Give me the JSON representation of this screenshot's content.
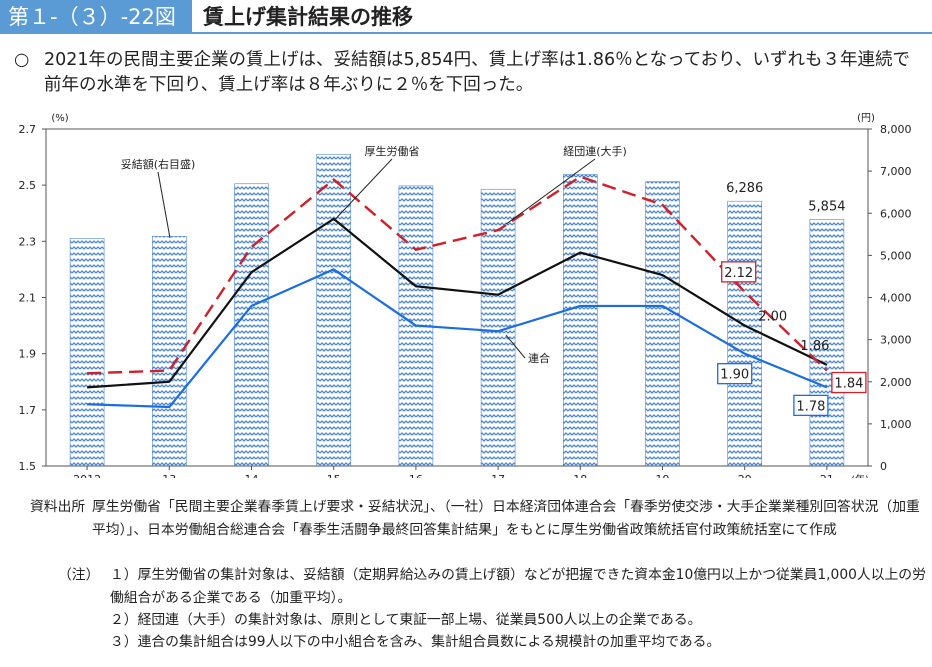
{
  "header": {
    "figure_id": "第１-（３）-22図",
    "title": "賃上げ集計結果の推移"
  },
  "lead": {
    "mark": "○",
    "text": "2021年の民間主要企業の賃上げは、妥結額は5,854円、賃上げ率は1.86％となっており、いずれも３年連続で前年の水準を下回り、賃上げ率は８年ぶりに２％を下回った。"
  },
  "chart_data": {
    "type": "bar+line",
    "categories": [
      "2012",
      "13",
      "14",
      "15",
      "16",
      "17",
      "18",
      "19",
      "20",
      "21"
    ],
    "x_unit": "(年)",
    "y_left": {
      "unit": "(%)",
      "ylim": [
        1.5,
        2.7
      ],
      "ticks": [
        "1.5",
        "1.7",
        "1.9",
        "2.1",
        "2.3",
        "2.5",
        "2.7"
      ]
    },
    "y_right": {
      "unit": "(円)",
      "ylim": [
        0,
        8000
      ],
      "ticks": [
        "0",
        "1,000",
        "2,000",
        "3,000",
        "4,000",
        "5,000",
        "6,000",
        "7,000",
        "8,000"
      ]
    },
    "bars": {
      "name": "妥結額(右目盛)",
      "axis": "right",
      "color": "#5b8fd6",
      "values": [
        5400,
        5450,
        6700,
        7400,
        6650,
        6570,
        6920,
        6750,
        6286,
        5854
      ],
      "labels": {
        "20": "6,286",
        "21": "5,854"
      }
    },
    "series": [
      {
        "name": "厚生労働省",
        "axis": "left",
        "style": "solid",
        "color": "#111111",
        "values": [
          1.78,
          1.8,
          2.19,
          2.38,
          2.14,
          2.11,
          2.26,
          2.18,
          2.0,
          1.86
        ]
      },
      {
        "name": "経団連(大手)",
        "axis": "left",
        "style": "dashed",
        "color": "#d0202a",
        "values": [
          1.83,
          1.84,
          2.28,
          2.52,
          2.27,
          2.34,
          2.53,
          2.43,
          2.12,
          1.84
        ]
      },
      {
        "name": "連合",
        "axis": "left",
        "style": "solid",
        "color": "#1a6ee0",
        "values": [
          1.72,
          1.71,
          2.07,
          2.2,
          2.0,
          1.98,
          2.07,
          2.07,
          1.9,
          1.78
        ]
      }
    ],
    "annotations": [
      {
        "text": "2.12",
        "series": "経団連(大手)",
        "index": 8,
        "boxed": true,
        "color": "#d0202a"
      },
      {
        "text": "2.00",
        "series": "厚生労働省",
        "index": 8,
        "boxed": false
      },
      {
        "text": "1.90",
        "series": "連合",
        "index": 8,
        "boxed": true,
        "color": "#1a6ee0"
      },
      {
        "text": "1.86",
        "series": "厚生労働省",
        "index": 9,
        "boxed": false
      },
      {
        "text": "1.84",
        "series": "経団連(大手)",
        "index": 9,
        "boxed": true,
        "color": "#d0202a"
      },
      {
        "text": "1.78",
        "series": "連合",
        "index": 9,
        "boxed": true,
        "color": "#1a6ee0"
      }
    ]
  },
  "notes": {
    "source_label": "資料出所",
    "source_text": "厚生労働省「民間主要企業春季賃上げ要求・妥結状況」、（一社）日本経済団体連合会「春季労使交渉・大手企業業種別回答状況（加重平均）」、日本労働組合総連合会「春季生活闘争最終回答集計結果」をもとに厚生労働省政策統括官付政策統括室にて作成",
    "note_label": "（注）",
    "items": [
      "１）厚生労働省の集計対象は、妥結額（定期昇給込みの賃上げ額）などが把握できた資本金10億円以上かつ従業員1,000人以上の労働組合がある企業である（加重平均）。",
      "２）経団連（大手）の集計対象は、原則として東証一部上場、従業員500人以上の企業である。",
      "３）連合の集計組合は99人以下の中小組合を含み、集計組合員数による規模計の加重平均である。"
    ]
  }
}
